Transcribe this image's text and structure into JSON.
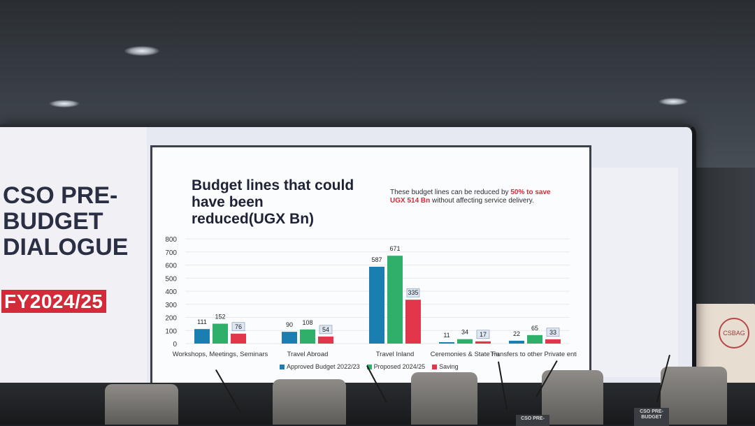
{
  "screen": {
    "sidebar_title": "CSO PRE-\nBUDGET\nDIALOGUE",
    "badge": "FY2024/25"
  },
  "slide": {
    "title": "Budget lines that could have been reduced(UGX Bn)",
    "note_part1": "These budget lines can be reduced by ",
    "note_highlight1": "50%",
    "note_highlight2": "to save UGX 514 Bn",
    "note_part2": " without affecting service delivery."
  },
  "chart_data": {
    "type": "bar",
    "categories": [
      "Workshops, Meetings, Seminars",
      "Travel Abroad",
      "Travel Inland",
      "Ceremonies & State Functions",
      "Transfers to other Private entities"
    ],
    "category_labels_shown": [
      "Workshops, Meetings, Seminars",
      "Travel Abroad",
      "Travel Inland",
      "Ceremonies & State Fu",
      "Transfers to other Private entit"
    ],
    "series": [
      {
        "name": "Approved Budget 2022/23",
        "values": [
          111,
          90,
          587,
          11,
          22
        ],
        "color": "#1a7fb0"
      },
      {
        "name": "Proposed 2024/25",
        "values": [
          152,
          108,
          671,
          34,
          65
        ],
        "color": "#2fb06a"
      },
      {
        "name": "Saving",
        "values": [
          76,
          54,
          335,
          17,
          33
        ],
        "color": "#e2364a"
      }
    ],
    "y_ticks": [
      0,
      100,
      200,
      300,
      400,
      500,
      600,
      700,
      800
    ],
    "ylim": [
      0,
      800
    ],
    "legend_position": "bottom"
  },
  "room": {
    "placard_1": "CSO PRE-",
    "placard_2": "CSO PRE-\nBUDGET",
    "poster_text": "CSBAG"
  }
}
